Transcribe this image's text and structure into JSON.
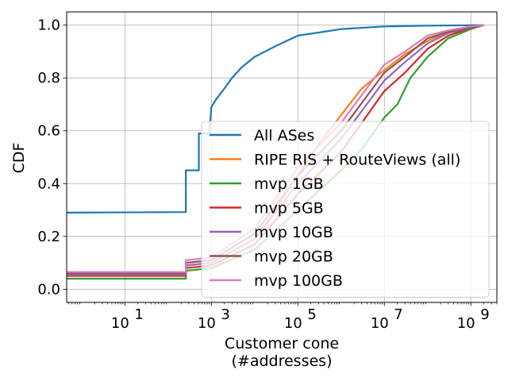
{
  "chart_data": {
    "type": "line",
    "xscale": "log",
    "xlim": [
      0.45,
      4000000000
    ],
    "ylim": [
      -0.05,
      1.05
    ],
    "xlabel_line1": "Customer cone",
    "xlabel_line2": "(#addresses)",
    "ylabel": "CDF",
    "grid": true,
    "legend_position": "lower-right",
    "x_ticks": [
      {
        "value": 10,
        "base": "10",
        "exp": "1"
      },
      {
        "value": 1000,
        "base": "10",
        "exp": "3"
      },
      {
        "value": 100000,
        "base": "10",
        "exp": "5"
      },
      {
        "value": 10000000,
        "base": "10",
        "exp": "7"
      },
      {
        "value": 1000000000,
        "base": "10",
        "exp": "9"
      }
    ],
    "y_ticks": [
      "0.0",
      "0.2",
      "0.4",
      "0.6",
      "0.8",
      "1.0"
    ],
    "series": [
      {
        "name": "All ASes",
        "color": "#1f77b4",
        "points": [
          [
            0.45,
            0.29
          ],
          [
            256,
            0.292
          ],
          [
            256,
            0.45
          ],
          [
            512,
            0.45
          ],
          [
            512,
            0.59
          ],
          [
            900,
            0.59
          ],
          [
            1000,
            0.69
          ],
          [
            1300,
            0.72
          ],
          [
            2000,
            0.76
          ],
          [
            3000,
            0.8
          ],
          [
            5000,
            0.84
          ],
          [
            10000,
            0.88
          ],
          [
            30000,
            0.92
          ],
          [
            100000,
            0.96
          ],
          [
            400000,
            0.975
          ],
          [
            1000000,
            0.985
          ],
          [
            10000000,
            0.995
          ],
          [
            100000000,
            0.998
          ],
          [
            2000000000,
            1.0
          ]
        ]
      },
      {
        "name": "RIPE RIS + RouteViews (all)",
        "color": "#ff7f0e",
        "points": [
          [
            0.45,
            0.055
          ],
          [
            256,
            0.055
          ],
          [
            256,
            0.09
          ],
          [
            1000,
            0.1
          ],
          [
            10000,
            0.19
          ],
          [
            30000,
            0.3
          ],
          [
            100000,
            0.43
          ],
          [
            300000,
            0.55
          ],
          [
            1000000,
            0.66
          ],
          [
            3000000,
            0.76
          ],
          [
            10000000,
            0.83
          ],
          [
            30000000,
            0.89
          ],
          [
            100000000,
            0.94
          ],
          [
            300000000,
            0.975
          ],
          [
            2000000000,
            1.0
          ]
        ]
      },
      {
        "name": "mvp 1GB",
        "color": "#2ca02c",
        "points": [
          [
            0.45,
            0.04
          ],
          [
            256,
            0.04
          ],
          [
            256,
            0.07
          ],
          [
            1000,
            0.08
          ],
          [
            10000,
            0.15
          ],
          [
            100000,
            0.3
          ],
          [
            1000000,
            0.45
          ],
          [
            3000000,
            0.53
          ],
          [
            10000000,
            0.65
          ],
          [
            20000000,
            0.7
          ],
          [
            40000000,
            0.8
          ],
          [
            100000000,
            0.88
          ],
          [
            300000000,
            0.95
          ],
          [
            1000000000,
            0.985
          ],
          [
            2000000000,
            1.0
          ]
        ]
      },
      {
        "name": "mvp 5GB",
        "color": "#d62728",
        "points": [
          [
            0.45,
            0.05
          ],
          [
            256,
            0.05
          ],
          [
            256,
            0.08
          ],
          [
            1000,
            0.09
          ],
          [
            10000,
            0.17
          ],
          [
            100000,
            0.36
          ],
          [
            1000000,
            0.52
          ],
          [
            10000000,
            0.75
          ],
          [
            30000000,
            0.82
          ],
          [
            100000000,
            0.91
          ],
          [
            300000000,
            0.96
          ],
          [
            1000000000,
            0.99
          ],
          [
            2000000000,
            1.0
          ]
        ]
      },
      {
        "name": "mvp 10GB",
        "color": "#9467bd",
        "points": [
          [
            0.45,
            0.055
          ],
          [
            256,
            0.055
          ],
          [
            256,
            0.09
          ],
          [
            1000,
            0.1
          ],
          [
            10000,
            0.19
          ],
          [
            100000,
            0.4
          ],
          [
            1000000,
            0.57
          ],
          [
            10000000,
            0.79
          ],
          [
            30000000,
            0.86
          ],
          [
            100000000,
            0.93
          ],
          [
            300000000,
            0.97
          ],
          [
            1000000000,
            0.99
          ],
          [
            2000000000,
            1.0
          ]
        ]
      },
      {
        "name": "mvp 20GB",
        "color": "#8c564b",
        "points": [
          [
            0.45,
            0.06
          ],
          [
            256,
            0.06
          ],
          [
            256,
            0.1
          ],
          [
            1000,
            0.11
          ],
          [
            10000,
            0.21
          ],
          [
            100000,
            0.43
          ],
          [
            1000000,
            0.6
          ],
          [
            10000000,
            0.82
          ],
          [
            30000000,
            0.88
          ],
          [
            100000000,
            0.95
          ],
          [
            300000000,
            0.975
          ],
          [
            1000000000,
            0.99
          ],
          [
            2000000000,
            1.0
          ]
        ]
      },
      {
        "name": "mvp 100GB",
        "color": "#e377c2",
        "points": [
          [
            0.45,
            0.065
          ],
          [
            256,
            0.065
          ],
          [
            256,
            0.11
          ],
          [
            1000,
            0.12
          ],
          [
            10000,
            0.23
          ],
          [
            100000,
            0.46
          ],
          [
            1000000,
            0.63
          ],
          [
            10000000,
            0.85
          ],
          [
            30000000,
            0.9
          ],
          [
            100000000,
            0.96
          ],
          [
            300000000,
            0.98
          ],
          [
            1000000000,
            0.995
          ],
          [
            2000000000,
            1.0
          ]
        ]
      }
    ]
  }
}
